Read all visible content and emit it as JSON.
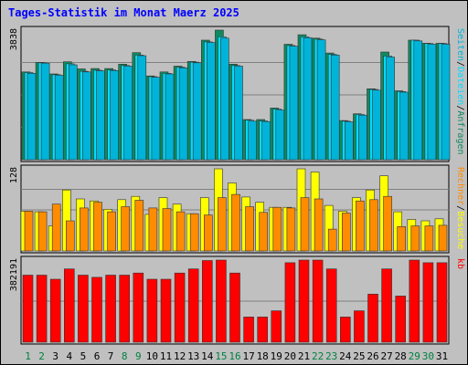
{
  "title": "Tages-Statistik im Monat Maerz 2025",
  "colors": {
    "background": "#c0c0c0",
    "panel": "#c0c0c0",
    "title": "#0000ff",
    "hits": "#0f8a5f",
    "files": "#00ddff",
    "pages": "#00b3d9",
    "visits": "#ffff00",
    "sites": "#ff8c00",
    "kb": "#ff0000",
    "day_weekday": "#000000",
    "day_weekend": "#008040"
  },
  "chart_data": [
    {
      "type": "bar",
      "panel": "traffic",
      "ylim": [
        0,
        3838
      ],
      "max_label": "3838",
      "right_axis": [
        "Anfragen",
        "/",
        "Dateien",
        "/",
        "Seiten"
      ],
      "categories": [
        "1",
        "2",
        "3",
        "4",
        "5",
        "6",
        "7",
        "8",
        "9",
        "10",
        "11",
        "12",
        "13",
        "14",
        "15",
        "16",
        "17",
        "18",
        "19",
        "20",
        "21",
        "22",
        "23",
        "24",
        "25",
        "26",
        "27",
        "28",
        "29",
        "30",
        "31"
      ],
      "series": [
        {
          "name": "Anfragen",
          "values": [
            2600,
            2880,
            2540,
            2900,
            2690,
            2700,
            2700,
            2830,
            3170,
            2480,
            2600,
            2770,
            2910,
            3540,
            3838,
            2830,
            1190,
            1190,
            1530,
            3420,
            3700,
            3600,
            3160,
            1160,
            1360,
            2100,
            3190,
            2040,
            3540,
            3450,
            3450
          ]
        },
        {
          "name": "Dateien",
          "values": [
            2580,
            2870,
            2520,
            2840,
            2620,
            2650,
            2660,
            2790,
            3100,
            2460,
            2560,
            2740,
            2890,
            3490,
            3640,
            2790,
            1170,
            1150,
            1500,
            3380,
            3640,
            3570,
            3120,
            1140,
            1340,
            2080,
            3070,
            2020,
            3540,
            3440,
            3440
          ]
        },
        {
          "name": "Seiten",
          "values": [
            2560,
            2860,
            2500,
            2810,
            2600,
            2630,
            2640,
            2770,
            3080,
            2440,
            2540,
            2720,
            2870,
            3470,
            3600,
            2770,
            1140,
            1130,
            1470,
            3360,
            3610,
            3550,
            3100,
            1120,
            1320,
            2060,
            3040,
            2000,
            3520,
            3420,
            3420
          ]
        }
      ]
    },
    {
      "type": "bar",
      "panel": "visits",
      "ylim": [
        0,
        128
      ],
      "max_label": "128",
      "right_axis": [
        "Besuche",
        "/",
        "Rechner"
      ],
      "categories": [
        "1",
        "2",
        "3",
        "4",
        "5",
        "6",
        "7",
        "8",
        "9",
        "10",
        "11",
        "12",
        "13",
        "14",
        "15",
        "16",
        "17",
        "18",
        "19",
        "20",
        "21",
        "22",
        "23",
        "24",
        "25",
        "26",
        "27",
        "28",
        "29",
        "30",
        "31"
      ],
      "series": [
        {
          "name": "Besuche",
          "values": [
            62,
            61,
            39,
            95,
            81,
            78,
            65,
            80,
            85,
            57,
            83,
            73,
            58,
            83,
            128,
            106,
            84,
            76,
            68,
            68,
            128,
            123,
            71,
            62,
            83,
            95,
            117,
            61,
            49,
            47,
            50
          ]
        },
        {
          "name": "Rechner",
          "values": [
            62,
            61,
            73,
            47,
            67,
            76,
            61,
            69,
            79,
            67,
            66,
            61,
            58,
            56,
            83,
            88,
            69,
            60,
            68,
            67,
            83,
            81,
            34,
            59,
            78,
            80,
            85,
            38,
            39,
            39,
            40
          ]
        }
      ]
    },
    {
      "type": "bar",
      "panel": "kb",
      "ylim": [
        0,
        382191
      ],
      "max_label": "382191",
      "right_axis": [
        "kb"
      ],
      "categories": [
        "1",
        "2",
        "3",
        "4",
        "5",
        "6",
        "7",
        "8",
        "9",
        "10",
        "11",
        "12",
        "13",
        "14",
        "15",
        "16",
        "17",
        "18",
        "19",
        "20",
        "21",
        "22",
        "23",
        "24",
        "25",
        "26",
        "27",
        "28",
        "29",
        "30",
        "31"
      ],
      "series": [
        {
          "name": "kb",
          "values": [
            312000,
            312000,
            293000,
            341000,
            312000,
            302000,
            312000,
            312000,
            322000,
            293000,
            293000,
            322000,
            341000,
            380000,
            382191,
            322000,
            117000,
            117000,
            146000,
            370000,
            382191,
            382191,
            341000,
            117000,
            146000,
            224000,
            341000,
            215000,
            382191,
            370000,
            370000
          ]
        }
      ]
    }
  ],
  "days": [
    "1",
    "2",
    "3",
    "4",
    "5",
    "6",
    "7",
    "8",
    "9",
    "10",
    "11",
    "12",
    "13",
    "14",
    "15",
    "16",
    "17",
    "18",
    "19",
    "20",
    "21",
    "22",
    "23",
    "24",
    "25",
    "26",
    "27",
    "28",
    "29",
    "30",
    "31"
  ],
  "weekend_days": [
    "1",
    "2",
    "8",
    "9",
    "15",
    "16",
    "22",
    "23",
    "29",
    "30"
  ]
}
